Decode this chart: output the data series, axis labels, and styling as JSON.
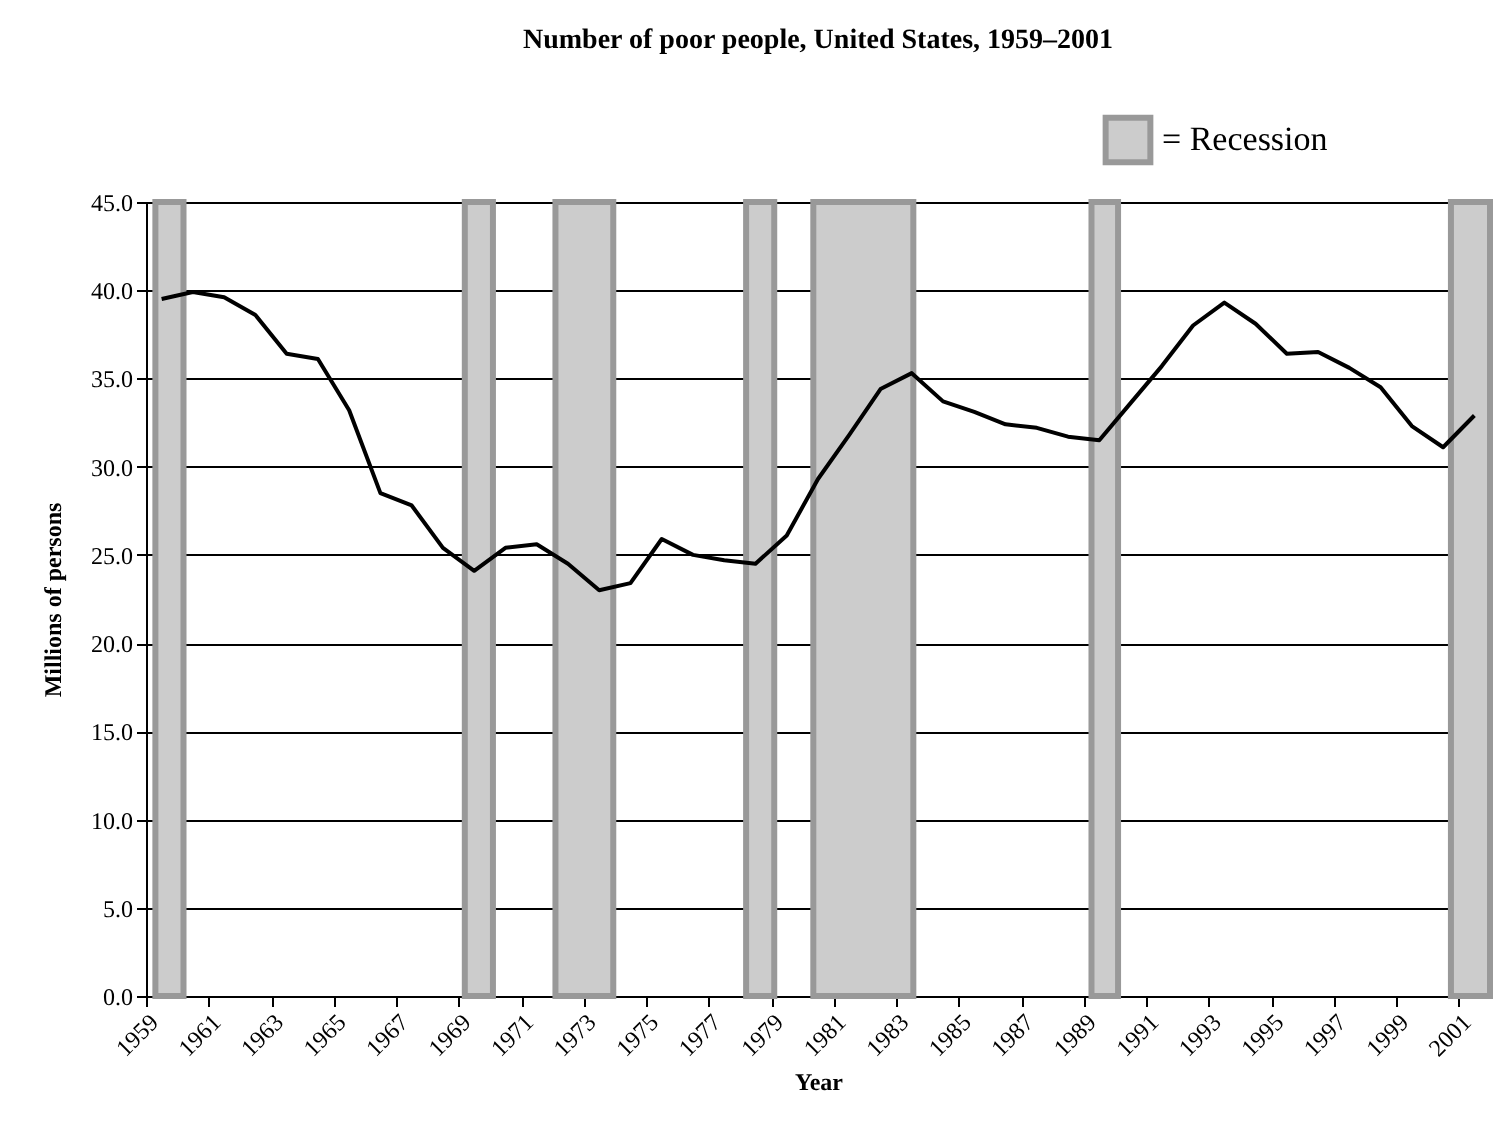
{
  "chart_data": {
    "type": "line",
    "title": "Number of poor people, United States, 1959–2001",
    "xlabel": "Year",
    "ylabel": "Millions of persons",
    "x": [
      1959,
      1960,
      1961,
      1962,
      1963,
      1964,
      1965,
      1966,
      1967,
      1968,
      1969,
      1970,
      1971,
      1972,
      1973,
      1974,
      1975,
      1976,
      1977,
      1978,
      1979,
      1980,
      1981,
      1982,
      1983,
      1984,
      1985,
      1986,
      1987,
      1988,
      1989,
      1990,
      1991,
      1992,
      1993,
      1994,
      1995,
      1996,
      1997,
      1998,
      1999,
      2000,
      2001
    ],
    "series": [
      {
        "color": "#000000",
        "values": [
          39.5,
          39.9,
          39.6,
          38.6,
          36.4,
          36.1,
          33.2,
          28.5,
          27.8,
          25.4,
          24.1,
          25.4,
          25.6,
          24.5,
          23.0,
          23.4,
          25.9,
          25.0,
          24.7,
          24.5,
          26.1,
          29.3,
          31.8,
          34.4,
          35.3,
          33.7,
          33.1,
          32.4,
          32.2,
          31.7,
          31.5,
          33.6,
          35.7,
          38.0,
          39.3,
          38.1,
          36.4,
          36.5,
          35.6,
          34.5,
          32.3,
          31.1,
          32.9
        ]
      }
    ],
    "xlim": [
      1958.5,
      2001.5
    ],
    "xticks": [
      {
        "value": 1958.5,
        "label": "1959"
      },
      {
        "value": 1960.5,
        "label": "1961"
      },
      {
        "value": 1962.5,
        "label": "1963"
      },
      {
        "value": 1964.5,
        "label": "1965"
      },
      {
        "value": 1966.5,
        "label": "1967"
      },
      {
        "value": 1968.5,
        "label": "1969"
      },
      {
        "value": 1970.5,
        "label": "1971"
      },
      {
        "value": 1972.5,
        "label": "1973"
      },
      {
        "value": 1974.5,
        "label": "1975"
      },
      {
        "value": 1976.5,
        "label": "1977"
      },
      {
        "value": 1978.5,
        "label": "1979"
      },
      {
        "value": 1980.5,
        "label": "1981"
      },
      {
        "value": 1982.5,
        "label": "1983"
      },
      {
        "value": 1984.5,
        "label": "1985"
      },
      {
        "value": 1986.5,
        "label": "1987"
      },
      {
        "value": 1988.5,
        "label": "1989"
      },
      {
        "value": 1990.5,
        "label": "1991"
      },
      {
        "value": 1992.5,
        "label": "1993"
      },
      {
        "value": 1994.5,
        "label": "1995"
      },
      {
        "value": 1996.5,
        "label": "1997"
      },
      {
        "value": 1998.5,
        "label": "1999"
      },
      {
        "value": 2000.5,
        "label": "2001"
      }
    ],
    "ylim": [
      0,
      45
    ],
    "yticks": [
      {
        "value": 0,
        "label": "0.0"
      },
      {
        "value": 5,
        "label": "5.0"
      },
      {
        "value": 10,
        "label": "10.0"
      },
      {
        "value": 15,
        "label": "15.0"
      },
      {
        "value": 20,
        "label": "20.0"
      },
      {
        "value": 25,
        "label": "25.0"
      },
      {
        "value": 30,
        "label": "30.0"
      },
      {
        "value": 35,
        "label": "35.0"
      },
      {
        "value": 40,
        "label": "40.0"
      },
      {
        "value": 45,
        "label": "45.0"
      }
    ],
    "bands": [
      {
        "axis": "x",
        "from": 1958.8,
        "to": 1959.7,
        "label": "= Recession",
        "color": "#cccccc"
      },
      {
        "axis": "x",
        "from": 1968.7,
        "to": 1969.6,
        "color": "#cccccc"
      },
      {
        "axis": "x",
        "from": 1971.6,
        "to": 1973.45,
        "color": "#cccccc"
      },
      {
        "axis": "x",
        "from": 1977.7,
        "to": 1978.6,
        "color": "#cccccc"
      },
      {
        "axis": "x",
        "from": 1979.85,
        "to": 1983.05,
        "color": "#cccccc"
      },
      {
        "axis": "x",
        "from": 1988.75,
        "to": 1989.6,
        "color": "#cccccc"
      },
      {
        "axis": "x",
        "from": 2000.25,
        "to": 2001.5,
        "color": "#cccccc"
      }
    ],
    "grid": "y",
    "legend": "top right",
    "marker": "none",
    "line_style": "solid"
  }
}
